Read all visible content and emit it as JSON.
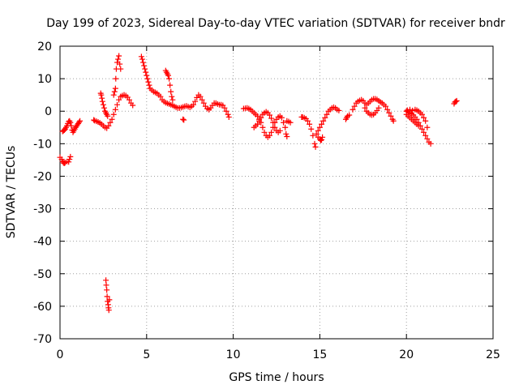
{
  "chart_data": {
    "type": "scatter",
    "title": "Day 199 of 2023, Sidereal Day-to-day VTEC variation (SDTVAR) for receiver bndr",
    "xlabel": "GPS time / hours",
    "ylabel": "SDTVAR / TECUs",
    "xlim": [
      0,
      25
    ],
    "ylim": [
      -70,
      20
    ],
    "xticks": [
      0,
      5,
      10,
      15,
      20,
      25
    ],
    "yticks": [
      20,
      10,
      0,
      -10,
      -20,
      -30,
      -40,
      -50,
      -60,
      -70
    ],
    "xtick_labels": [
      "0",
      "5",
      "10",
      "15",
      "20",
      "25"
    ],
    "ytick_labels": [
      "20",
      "10",
      "0",
      "-10",
      "-20",
      "-30",
      "-40",
      "-50",
      "-60",
      "-70"
    ],
    "grid": true,
    "marker": "+",
    "color": "#ff0000",
    "series": [
      {
        "name": "SDTVAR",
        "points": [
          [
            0.0,
            -14.2
          ],
          [
            0.1,
            -14.8
          ],
          [
            0.15,
            -15.5
          ],
          [
            0.2,
            -15.9
          ],
          [
            0.25,
            -16.0
          ],
          [
            0.3,
            -15.8
          ],
          [
            0.4,
            -15.5
          ],
          [
            0.5,
            -15.6
          ],
          [
            0.55,
            -14.8
          ],
          [
            0.6,
            -14.0
          ],
          [
            0.15,
            -6.2
          ],
          [
            0.2,
            -6.0
          ],
          [
            0.25,
            -5.8
          ],
          [
            0.3,
            -5.5
          ],
          [
            0.35,
            -5.0
          ],
          [
            0.4,
            -4.5
          ],
          [
            0.45,
            -3.8
          ],
          [
            0.5,
            -3.2
          ],
          [
            0.55,
            -3.0
          ],
          [
            0.6,
            -3.5
          ],
          [
            0.65,
            -4.5
          ],
          [
            0.7,
            -5.8
          ],
          [
            0.75,
            -6.5
          ],
          [
            0.8,
            -6.0
          ],
          [
            0.85,
            -5.5
          ],
          [
            0.9,
            -5.0
          ],
          [
            0.95,
            -4.6
          ],
          [
            1.0,
            -4.2
          ],
          [
            1.05,
            -3.8
          ],
          [
            1.1,
            -3.4
          ],
          [
            1.15,
            -3.0
          ],
          [
            1.95,
            -2.7
          ],
          [
            2.0,
            -2.9
          ],
          [
            2.1,
            -3.1
          ],
          [
            2.2,
            -3.3
          ],
          [
            2.3,
            -3.6
          ],
          [
            2.4,
            -4.0
          ],
          [
            2.5,
            -4.5
          ],
          [
            2.6,
            -5.0
          ],
          [
            2.7,
            -5.2
          ],
          [
            2.8,
            -4.5
          ],
          [
            2.9,
            -3.5
          ],
          [
            3.0,
            -2.5
          ],
          [
            3.1,
            -1.0
          ],
          [
            3.2,
            0.5
          ],
          [
            3.3,
            2.0
          ],
          [
            3.4,
            3.5
          ],
          [
            3.5,
            4.5
          ],
          [
            3.6,
            4.8
          ],
          [
            3.7,
            5.0
          ],
          [
            3.8,
            4.8
          ],
          [
            3.9,
            4.3
          ],
          [
            4.0,
            3.5
          ],
          [
            4.1,
            2.5
          ],
          [
            4.2,
            1.8
          ],
          [
            2.35,
            5.5
          ],
          [
            2.38,
            5.0
          ],
          [
            2.42,
            4.0
          ],
          [
            2.45,
            3.0
          ],
          [
            2.5,
            2.0
          ],
          [
            2.55,
            1.0
          ],
          [
            2.6,
            0.0
          ],
          [
            2.65,
            -0.5
          ],
          [
            2.7,
            -1.0
          ],
          [
            2.75,
            -1.5
          ],
          [
            3.1,
            5.0
          ],
          [
            3.15,
            6.0
          ],
          [
            3.2,
            7.0
          ],
          [
            3.22,
            10.0
          ],
          [
            3.25,
            13.0
          ],
          [
            3.3,
            15.0
          ],
          [
            3.35,
            16.0
          ],
          [
            3.4,
            17.0
          ],
          [
            3.45,
            14.5
          ],
          [
            3.5,
            13.0
          ],
          [
            2.65,
            -52.0
          ],
          [
            2.67,
            -53.5
          ],
          [
            2.7,
            -55.0
          ],
          [
            2.72,
            -57.0
          ],
          [
            2.75,
            -58.5
          ],
          [
            2.78,
            -59.5
          ],
          [
            2.8,
            -60.5
          ],
          [
            2.82,
            -61.2
          ],
          [
            2.85,
            -58.0
          ],
          [
            4.7,
            16.8
          ],
          [
            4.75,
            16.0
          ],
          [
            4.8,
            15.0
          ],
          [
            4.85,
            14.0
          ],
          [
            4.9,
            13.0
          ],
          [
            4.95,
            12.0
          ],
          [
            5.0,
            11.0
          ],
          [
            5.05,
            10.0
          ],
          [
            5.1,
            9.0
          ],
          [
            5.15,
            8.0
          ],
          [
            5.2,
            7.0
          ],
          [
            5.3,
            6.5
          ],
          [
            5.4,
            6.0
          ],
          [
            5.5,
            5.8
          ],
          [
            5.6,
            5.5
          ],
          [
            5.7,
            5.0
          ],
          [
            5.8,
            4.5
          ],
          [
            5.9,
            3.5
          ],
          [
            6.0,
            3.0
          ],
          [
            6.1,
            2.6
          ],
          [
            6.2,
            2.4
          ],
          [
            6.3,
            2.2
          ],
          [
            6.4,
            2.0
          ],
          [
            6.5,
            1.8
          ],
          [
            6.6,
            1.5
          ],
          [
            6.7,
            1.2
          ],
          [
            6.8,
            1.0
          ],
          [
            6.9,
            1.0
          ],
          [
            7.0,
            1.1
          ],
          [
            7.1,
            1.3
          ],
          [
            7.2,
            1.5
          ],
          [
            7.3,
            1.6
          ],
          [
            7.4,
            1.4
          ],
          [
            7.5,
            1.2
          ],
          [
            7.6,
            1.5
          ],
          [
            7.7,
            2.0
          ],
          [
            7.8,
            3.0
          ],
          [
            7.9,
            4.2
          ],
          [
            8.0,
            5.0
          ],
          [
            8.1,
            4.5
          ],
          [
            8.2,
            3.5
          ],
          [
            8.3,
            2.5
          ],
          [
            8.4,
            1.5
          ],
          [
            8.5,
            0.8
          ],
          [
            8.6,
            0.5
          ],
          [
            8.7,
            1.0
          ],
          [
            8.8,
            1.8
          ],
          [
            8.9,
            2.5
          ],
          [
            9.0,
            2.5
          ],
          [
            9.1,
            2.2
          ],
          [
            9.2,
            2.0
          ],
          [
            9.3,
            2.0
          ],
          [
            9.4,
            1.8
          ],
          [
            9.5,
            1.0
          ],
          [
            9.6,
            0.0
          ],
          [
            9.7,
            -1.0
          ],
          [
            9.75,
            -1.8
          ],
          [
            6.1,
            12.5
          ],
          [
            6.15,
            12.0
          ],
          [
            6.2,
            11.5
          ],
          [
            6.25,
            11.0
          ],
          [
            6.3,
            10.0
          ],
          [
            6.35,
            8.0
          ],
          [
            6.4,
            6.0
          ],
          [
            6.45,
            4.5
          ],
          [
            6.5,
            3.5
          ],
          [
            7.1,
            -2.5
          ],
          [
            7.15,
            -2.7
          ],
          [
            10.6,
            0.8
          ],
          [
            10.7,
            0.9
          ],
          [
            10.8,
            1.0
          ],
          [
            10.9,
            0.8
          ],
          [
            11.0,
            0.5
          ],
          [
            11.1,
            0.0
          ],
          [
            11.2,
            -0.5
          ],
          [
            11.3,
            -1.0
          ],
          [
            11.4,
            -1.5
          ],
          [
            11.5,
            -2.5
          ],
          [
            11.6,
            -3.5
          ],
          [
            11.7,
            -5.0
          ],
          [
            11.8,
            -6.5
          ],
          [
            11.9,
            -7.5
          ],
          [
            12.0,
            -8.0
          ],
          [
            12.1,
            -7.5
          ],
          [
            12.2,
            -6.5
          ],
          [
            12.3,
            -5.0
          ],
          [
            12.4,
            -3.5
          ],
          [
            12.5,
            -2.5
          ],
          [
            12.6,
            -1.8
          ],
          [
            12.7,
            -1.5
          ],
          [
            12.8,
            -2.0
          ],
          [
            12.9,
            -3.5
          ],
          [
            13.0,
            -5.0
          ],
          [
            13.05,
            -7.0
          ],
          [
            13.1,
            -7.8
          ],
          [
            11.2,
            -5.0
          ],
          [
            11.3,
            -4.5
          ],
          [
            11.4,
            -4.0
          ],
          [
            11.5,
            -3.0
          ],
          [
            11.6,
            -2.0
          ],
          [
            11.7,
            -1.0
          ],
          [
            11.8,
            -0.5
          ],
          [
            11.9,
            -0.2
          ],
          [
            12.0,
            -0.5
          ],
          [
            12.1,
            -1.2
          ],
          [
            12.2,
            -2.2
          ],
          [
            12.3,
            -3.5
          ],
          [
            12.4,
            -5.0
          ],
          [
            12.5,
            -6.0
          ],
          [
            12.6,
            -6.5
          ],
          [
            12.7,
            -6.0
          ],
          [
            13.1,
            -3.0
          ],
          [
            13.2,
            -3.2
          ],
          [
            13.3,
            -3.5
          ],
          [
            13.95,
            -1.8
          ],
          [
            14.0,
            -1.8
          ],
          [
            14.1,
            -2.0
          ],
          [
            14.2,
            -2.3
          ],
          [
            14.3,
            -3.0
          ],
          [
            14.4,
            -4.0
          ],
          [
            14.5,
            -5.5
          ],
          [
            14.6,
            -7.5
          ],
          [
            14.7,
            -10.0
          ],
          [
            14.75,
            -11.0
          ],
          [
            14.8,
            -7.0
          ],
          [
            14.9,
            -6.0
          ],
          [
            15.0,
            -5.0
          ],
          [
            15.1,
            -4.0
          ],
          [
            15.2,
            -3.0
          ],
          [
            15.3,
            -2.0
          ],
          [
            15.4,
            -1.0
          ],
          [
            15.5,
            0.0
          ],
          [
            15.6,
            0.5
          ],
          [
            15.7,
            1.0
          ],
          [
            15.8,
            1.2
          ],
          [
            15.9,
            1.0
          ],
          [
            16.0,
            0.5
          ],
          [
            16.1,
            0.2
          ],
          [
            14.9,
            -8.0
          ],
          [
            15.0,
            -8.5
          ],
          [
            15.05,
            -9.0
          ],
          [
            15.1,
            -8.8
          ],
          [
            15.15,
            -8.0
          ],
          [
            16.5,
            -2.5
          ],
          [
            16.55,
            -2.0
          ],
          [
            16.6,
            -1.5
          ],
          [
            16.7,
            -1.2
          ],
          [
            16.9,
            0.5
          ],
          [
            17.0,
            1.5
          ],
          [
            17.1,
            2.5
          ],
          [
            17.2,
            3.0
          ],
          [
            17.3,
            3.3
          ],
          [
            17.4,
            3.5
          ],
          [
            17.5,
            3.2
          ],
          [
            17.6,
            2.5
          ],
          [
            17.7,
            2.0
          ],
          [
            17.8,
            2.5
          ],
          [
            17.9,
            3.0
          ],
          [
            18.0,
            3.5
          ],
          [
            18.1,
            3.8
          ],
          [
            18.2,
            3.8
          ],
          [
            18.3,
            3.6
          ],
          [
            18.4,
            3.2
          ],
          [
            18.5,
            2.8
          ],
          [
            18.6,
            2.5
          ],
          [
            18.7,
            2.0
          ],
          [
            18.8,
            1.5
          ],
          [
            18.9,
            0.5
          ],
          [
            19.0,
            -0.5
          ],
          [
            19.1,
            -1.5
          ],
          [
            19.2,
            -2.5
          ],
          [
            19.25,
            -3.0
          ],
          [
            17.6,
            1.0
          ],
          [
            17.7,
            0.0
          ],
          [
            17.8,
            -0.5
          ],
          [
            17.9,
            -1.0
          ],
          [
            18.0,
            -1.2
          ],
          [
            18.1,
            -1.0
          ],
          [
            18.2,
            -0.5
          ],
          [
            18.3,
            0.2
          ],
          [
            18.4,
            1.0
          ],
          [
            20.0,
            0.0
          ],
          [
            20.1,
            -0.2
          ],
          [
            20.2,
            -0.5
          ],
          [
            20.3,
            -0.8
          ],
          [
            20.4,
            -1.2
          ],
          [
            20.5,
            -1.8
          ],
          [
            20.6,
            -2.5
          ],
          [
            20.7,
            -3.5
          ],
          [
            20.8,
            -4.5
          ],
          [
            20.9,
            -5.5
          ],
          [
            21.0,
            -6.5
          ],
          [
            21.1,
            -7.5
          ],
          [
            21.2,
            -8.5
          ],
          [
            21.3,
            -9.5
          ],
          [
            21.4,
            -10.0
          ],
          [
            20.0,
            -1.0
          ],
          [
            20.1,
            -1.5
          ],
          [
            20.2,
            -2.0
          ],
          [
            20.3,
            -2.5
          ],
          [
            20.4,
            -3.0
          ],
          [
            20.5,
            -3.5
          ],
          [
            20.6,
            -4.0
          ],
          [
            20.7,
            -4.5
          ],
          [
            20.05,
            0.3
          ],
          [
            20.2,
            0.5
          ],
          [
            20.35,
            0.2
          ],
          [
            20.5,
            0.5
          ],
          [
            20.6,
            0.3
          ],
          [
            20.7,
            0.0
          ],
          [
            20.8,
            -0.5
          ],
          [
            20.9,
            -1.0
          ],
          [
            21.0,
            -2.0
          ],
          [
            21.1,
            -3.0
          ],
          [
            21.2,
            -5.0
          ],
          [
            22.75,
            2.3
          ],
          [
            22.8,
            2.8
          ],
          [
            22.85,
            3.0
          ],
          [
            22.9,
            3.2
          ]
        ]
      }
    ]
  }
}
